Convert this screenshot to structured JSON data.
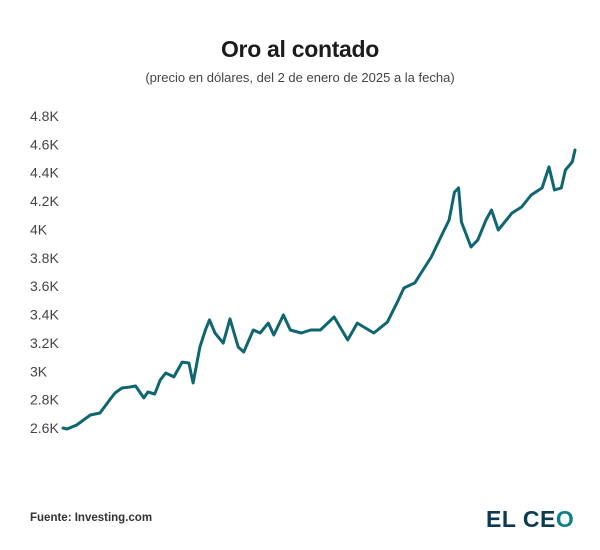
{
  "chart_data": {
    "type": "line",
    "title": "Oro al contado",
    "subtitle": "(precio en dólares, del 2 de enero de 2025 a la fecha)",
    "xlabel": "",
    "ylabel": "",
    "ylim": [
      2600,
      4800
    ],
    "yticks": [
      {
        "value": 2600,
        "label": "2.6K"
      },
      {
        "value": 2800,
        "label": "2.8K"
      },
      {
        "value": 3000,
        "label": "3K"
      },
      {
        "value": 3200,
        "label": "3.2K"
      },
      {
        "value": 3400,
        "label": "3.4K"
      },
      {
        "value": 3600,
        "label": "3.6K"
      },
      {
        "value": 3800,
        "label": "3.8K"
      },
      {
        "value": 4000,
        "label": "4K"
      },
      {
        "value": 4200,
        "label": "4.2K"
      },
      {
        "value": 4400,
        "label": "4.4K"
      },
      {
        "value": 4600,
        "label": "4.6K"
      },
      {
        "value": 4800,
        "label": "4.8K"
      }
    ],
    "grid": false,
    "line_color": "#0f6670",
    "series": [
      {
        "points": [
          [
            "2025-01-02",
            2600
          ],
          [
            "2025-01-05",
            2593
          ],
          [
            "2025-01-12",
            2621
          ],
          [
            "2025-01-22",
            2692
          ],
          [
            "2025-01-29",
            2706
          ],
          [
            "2025-02-05",
            2797
          ],
          [
            "2025-02-09",
            2847
          ],
          [
            "2025-02-14",
            2882
          ],
          [
            "2025-02-20",
            2889
          ],
          [
            "2025-02-24",
            2896
          ],
          [
            "2025-03-02",
            2812
          ],
          [
            "2025-03-05",
            2854
          ],
          [
            "2025-03-10",
            2840
          ],
          [
            "2025-03-14",
            2938
          ],
          [
            "2025-03-18",
            2988
          ],
          [
            "2025-03-24",
            2960
          ],
          [
            "2025-03-30",
            3065
          ],
          [
            "2025-04-04",
            3058
          ],
          [
            "2025-04-07",
            2917
          ],
          [
            "2025-04-12",
            3171
          ],
          [
            "2025-04-16",
            3291
          ],
          [
            "2025-04-19",
            3362
          ],
          [
            "2025-04-23",
            3270
          ],
          [
            "2025-04-29",
            3199
          ],
          [
            "2025-05-04",
            3369
          ],
          [
            "2025-05-10",
            3171
          ],
          [
            "2025-05-14",
            3136
          ],
          [
            "2025-05-21",
            3291
          ],
          [
            "2025-05-26",
            3270
          ],
          [
            "2025-06-01",
            3340
          ],
          [
            "2025-06-05",
            3256
          ],
          [
            "2025-06-12",
            3397
          ],
          [
            "2025-06-17",
            3291
          ],
          [
            "2025-06-25",
            3270
          ],
          [
            "2025-07-02",
            3291
          ],
          [
            "2025-07-09",
            3291
          ],
          [
            "2025-07-19",
            3383
          ],
          [
            "2025-07-29",
            3221
          ],
          [
            "2025-08-05",
            3340
          ],
          [
            "2025-08-17",
            3270
          ],
          [
            "2025-08-27",
            3347
          ],
          [
            "2025-09-04",
            3503
          ],
          [
            "2025-09-08",
            3587
          ],
          [
            "2025-09-16",
            3623
          ],
          [
            "2025-09-21",
            3700
          ],
          [
            "2025-09-28",
            3806
          ],
          [
            "2025-10-05",
            3947
          ],
          [
            "2025-10-11",
            4067
          ],
          [
            "2025-10-15",
            4264
          ],
          [
            "2025-10-18",
            4293
          ],
          [
            "2025-10-20",
            4053
          ],
          [
            "2025-10-27",
            3876
          ],
          [
            "2025-11-01",
            3926
          ],
          [
            "2025-11-07",
            4067
          ],
          [
            "2025-11-11",
            4137
          ],
          [
            "2025-11-16",
            3996
          ],
          [
            "2025-11-26",
            4116
          ],
          [
            "2025-12-03",
            4158
          ],
          [
            "2025-12-10",
            4243
          ],
          [
            "2025-12-18",
            4293
          ],
          [
            "2025-12-23",
            4441
          ],
          [
            "2025-12-27",
            4278
          ],
          [
            "2026-01-01",
            4293
          ],
          [
            "2026-01-04",
            4419
          ],
          [
            "2026-01-09",
            4476
          ],
          [
            "2026-01-11",
            4560
          ]
        ]
      }
    ]
  },
  "footer": {
    "source": "Fuente: Investing.com",
    "logo_text": "EL CEO"
  }
}
